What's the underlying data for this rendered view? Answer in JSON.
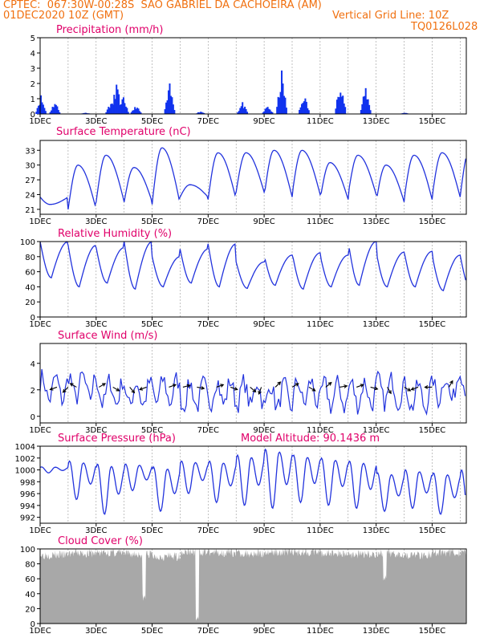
{
  "header": {
    "line1": "CPTEC:  067:30W-00:28S  SAO GABRIEL DA CACHOEIRA (AM)",
    "date": "01DEC2020 10Z (GMT)",
    "grid_note": "Vertical Grid Line: 10Z",
    "code": "TQ0126L028"
  },
  "colors": {
    "header": "#f07010",
    "title": "#e0006a",
    "line": "#2233dd",
    "bar": "#1133ee",
    "cloud": "#a8a8a8",
    "grid": "#999999"
  },
  "chart_data": [
    {
      "type": "bar",
      "title": "Precipitation (mm/h)",
      "x_tick_labels": [
        "1DEC",
        "3DEC",
        "5DEC",
        "7DEC",
        "9DEC",
        "11DEC",
        "13DEC",
        "15DEC"
      ],
      "ylim": [
        0,
        5
      ],
      "yticks": [
        0,
        1,
        2,
        3,
        4,
        5
      ],
      "bursts": [
        {
          "day": 1.0,
          "peak": 1.3
        },
        {
          "day": 1.5,
          "peak": 0.9
        },
        {
          "day": 2.6,
          "peak": 0.1
        },
        {
          "day": 3.5,
          "peak": 0.9
        },
        {
          "day": 3.7,
          "peak": 2.2
        },
        {
          "day": 3.95,
          "peak": 1.2
        },
        {
          "day": 4.4,
          "peak": 0.6
        },
        {
          "day": 5.6,
          "peak": 2.0
        },
        {
          "day": 6.7,
          "peak": 0.2
        },
        {
          "day": 8.2,
          "peak": 0.8
        },
        {
          "day": 9.1,
          "peak": 0.6
        },
        {
          "day": 9.6,
          "peak": 2.9
        },
        {
          "day": 10.4,
          "peak": 1.4
        },
        {
          "day": 11.7,
          "peak": 2.5
        },
        {
          "day": 12.6,
          "peak": 1.9
        },
        {
          "day": 14.0,
          "peak": 0.1
        }
      ]
    },
    {
      "type": "line",
      "title": "Surface Temperature (nC)",
      "x_tick_labels": [
        "1DEC",
        "3DEC",
        "5DEC",
        "7DEC",
        "9DEC",
        "11DEC",
        "13DEC",
        "15DEC"
      ],
      "ylim": [
        20,
        35
      ],
      "yticks": [
        21,
        24,
        27,
        30,
        33
      ],
      "daily_max": [
        22,
        30,
        32,
        29.5,
        33.5,
        26,
        32.5,
        32.5,
        33,
        33,
        30.5,
        32,
        30,
        32,
        32.5,
        33.5
      ],
      "daily_min": [
        23.5,
        21,
        22.5,
        22.5,
        22,
        23.5,
        23,
        24.5,
        23.5,
        24,
        23,
        24,
        22.5,
        23,
        23.5,
        23.5
      ]
    },
    {
      "type": "line",
      "title": "Relative Humidity (%)",
      "x_tick_labels": [
        "1DEC",
        "3DEC",
        "5DEC",
        "7DEC",
        "9DEC",
        "11DEC",
        "13DEC",
        "15DEC"
      ],
      "ylim": [
        0,
        100
      ],
      "yticks": [
        0,
        20,
        40,
        60,
        80,
        100
      ],
      "daily_max": [
        100,
        95,
        92,
        100,
        80,
        90,
        97,
        73,
        82,
        85,
        82,
        100,
        86,
        87,
        82
      ],
      "daily_min": [
        52,
        40,
        45,
        37,
        40,
        45,
        40,
        38,
        42,
        37,
        40,
        42,
        40,
        40,
        35
      ]
    },
    {
      "type": "line",
      "title": "Surface Wind (m/s)",
      "x_tick_labels": [
        "1DEC",
        "3DEC",
        "5DEC",
        "7DEC",
        "9DEC",
        "11DEC",
        "13DEC",
        "15DEC"
      ],
      "ylim": [
        -0.5,
        5.5
      ],
      "yticks": [
        0,
        2,
        4
      ],
      "daily_mean": [
        2.1,
        2.2,
        1.8,
        1.7,
        1.9,
        1.6,
        1.8,
        1.7,
        1.5,
        1.8,
        1.6,
        1.7,
        1.9,
        1.5,
        2.1,
        3.0
      ],
      "vector_days": [
        1.6,
        2.0,
        2.3,
        3.1,
        3.6,
        4.2,
        4.8,
        5.6,
        6.1,
        6.6,
        7.3,
        7.8,
        8.5,
        8.9,
        9.4,
        10.0,
        10.6,
        11.2,
        11.7,
        12.3,
        12.8,
        13.4,
        14.0,
        14.5,
        15.0,
        15.6
      ],
      "vector_angles": [
        200,
        225,
        150,
        30,
        330,
        310,
        200,
        20,
        15,
        350,
        20,
        340,
        320,
        250,
        45,
        30,
        330,
        40,
        10,
        20,
        345,
        300,
        330,
        200,
        180,
        60
      ]
    },
    {
      "type": "line",
      "title": "Surface Pressure (hPa)",
      "annotation": "Model Altitude: 90.1436 m",
      "x_tick_labels": [
        "1DEC",
        "3DEC",
        "5DEC",
        "7DEC",
        "9DEC",
        "11DEC",
        "13DEC",
        "15DEC"
      ],
      "ylim": [
        991,
        1004
      ],
      "yticks": [
        992,
        994,
        996,
        998,
        1000,
        1002,
        1004
      ],
      "daily_high": [
        1000.5,
        1001.5,
        1001,
        1001,
        1000.5,
        1001.5,
        1001.5,
        1002.5,
        1003.5,
        1002.5,
        1002,
        1001.5,
        999.5,
        1000,
        999.5,
        1000
      ],
      "daily_low": [
        999.5,
        995,
        992.5,
        996.5,
        993,
        996,
        994.5,
        994,
        993.5,
        994.5,
        994,
        993.5,
        993,
        993.5,
        992.5,
        992
      ]
    },
    {
      "type": "area",
      "title": "Cloud Cover (%)",
      "x_tick_labels": [
        "1DEC",
        "3DEC",
        "5DEC",
        "7DEC",
        "9DEC",
        "11DEC",
        "13DEC",
        "15DEC"
      ],
      "ylim": [
        0,
        100
      ],
      "yticks": [
        0,
        20,
        40,
        60,
        80,
        100
      ],
      "daily_typical": [
        92,
        94,
        95,
        93,
        90,
        96,
        95,
        94,
        96,
        96,
        94,
        93,
        94,
        92,
        95,
        97
      ],
      "dips": [
        {
          "day": 4.7,
          "value": 30
        },
        {
          "day": 6.6,
          "value": 2
        },
        {
          "day": 13.3,
          "value": 55
        }
      ]
    }
  ]
}
